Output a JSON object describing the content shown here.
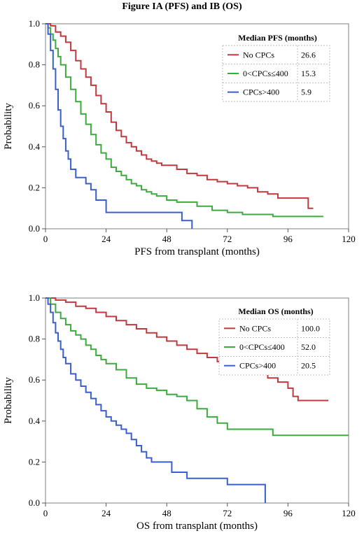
{
  "figure_title": "Figure IA (PFS) and IB (OS)",
  "chart_data": [
    {
      "type": "line",
      "step": true,
      "xlabel": "PFS from transplant (months)",
      "ylabel": "Probability",
      "xlim": [
        0,
        120
      ],
      "ylim": [
        0,
        1.0
      ],
      "xticks": [
        0,
        24,
        48,
        72,
        96,
        120
      ],
      "yticks": [
        0.0,
        0.2,
        0.4,
        0.6,
        0.8,
        1.0
      ],
      "legend": {
        "title": "Median PFS (months)",
        "placement": "top-right",
        "entries": [
          {
            "label": "No CPCs",
            "value": "26.6"
          },
          {
            "label": "0<CPCs≤400",
            "value": "15.3"
          },
          {
            "label": "CPCs>400",
            "value": "5.9"
          }
        ]
      },
      "series": [
        {
          "name": "No CPCs",
          "color": "#C0393F",
          "x": [
            0,
            2,
            4,
            6,
            8,
            10,
            12,
            14,
            16,
            18,
            20,
            22,
            24,
            26,
            28,
            30,
            32,
            34,
            36,
            38,
            40,
            42,
            44,
            46,
            48,
            52,
            56,
            60,
            64,
            68,
            72,
            76,
            80,
            84,
            88,
            92,
            96,
            100,
            104,
            106
          ],
          "y": [
            1.0,
            0.99,
            0.96,
            0.94,
            0.91,
            0.87,
            0.82,
            0.78,
            0.74,
            0.7,
            0.65,
            0.61,
            0.57,
            0.52,
            0.48,
            0.45,
            0.42,
            0.4,
            0.38,
            0.36,
            0.34,
            0.33,
            0.32,
            0.31,
            0.31,
            0.29,
            0.27,
            0.26,
            0.24,
            0.23,
            0.22,
            0.21,
            0.2,
            0.18,
            0.17,
            0.15,
            0.15,
            0.15,
            0.1,
            0.1
          ]
        },
        {
          "name": "0<CPCs≤400",
          "color": "#3DAA3F",
          "x": [
            0,
            1,
            2,
            3,
            4,
            5,
            6,
            8,
            10,
            12,
            14,
            16,
            18,
            20,
            22,
            24,
            26,
            28,
            30,
            32,
            34,
            36,
            38,
            40,
            42,
            44,
            48,
            52,
            56,
            60,
            66,
            72,
            78,
            84,
            90,
            96,
            102,
            110
          ],
          "y": [
            1.0,
            0.98,
            0.95,
            0.92,
            0.88,
            0.84,
            0.8,
            0.74,
            0.68,
            0.62,
            0.56,
            0.51,
            0.46,
            0.41,
            0.37,
            0.34,
            0.3,
            0.28,
            0.26,
            0.24,
            0.22,
            0.21,
            0.19,
            0.18,
            0.17,
            0.16,
            0.14,
            0.13,
            0.13,
            0.11,
            0.09,
            0.08,
            0.07,
            0.07,
            0.06,
            0.06,
            0.06,
            0.06
          ]
        },
        {
          "name": "CPCs>400",
          "color": "#3A5FCD",
          "x": [
            0,
            1,
            2,
            3,
            4,
            5,
            6,
            7,
            8,
            9,
            10,
            12,
            14,
            16,
            18,
            20,
            22,
            24,
            30,
            36,
            42,
            48,
            54,
            58
          ],
          "y": [
            1.0,
            0.95,
            0.87,
            0.78,
            0.68,
            0.58,
            0.5,
            0.44,
            0.38,
            0.34,
            0.29,
            0.25,
            0.25,
            0.22,
            0.19,
            0.14,
            0.14,
            0.08,
            0.08,
            0.08,
            0.08,
            0.08,
            0.04,
            0.0
          ]
        }
      ]
    },
    {
      "type": "line",
      "step": true,
      "xlabel": "OS from transplant (months)",
      "ylabel": "Probability",
      "xlim": [
        0,
        120
      ],
      "ylim": [
        0,
        1.0
      ],
      "xticks": [
        0,
        24,
        48,
        72,
        96,
        120
      ],
      "yticks": [
        0.0,
        0.2,
        0.4,
        0.6,
        0.8,
        1.0
      ],
      "legend": {
        "title": "Median OS (months)",
        "placement": "top-right",
        "entries": [
          {
            "label": "No CPCs",
            "value": "100.0"
          },
          {
            "label": "0<CPCs≤400",
            "value": "52.0"
          },
          {
            "label": "CPCs>400",
            "value": "20.5"
          }
        ]
      },
      "series": [
        {
          "name": "No CPCs",
          "color": "#C0393F",
          "x": [
            0,
            4,
            8,
            12,
            16,
            20,
            24,
            28,
            32,
            36,
            40,
            44,
            48,
            52,
            56,
            60,
            64,
            68,
            72,
            76,
            80,
            84,
            88,
            92,
            96,
            98,
            100,
            104,
            108,
            112
          ],
          "y": [
            1.0,
            0.99,
            0.98,
            0.96,
            0.95,
            0.93,
            0.91,
            0.89,
            0.87,
            0.85,
            0.83,
            0.81,
            0.79,
            0.77,
            0.75,
            0.73,
            0.71,
            0.69,
            0.67,
            0.65,
            0.64,
            0.63,
            0.61,
            0.59,
            0.56,
            0.52,
            0.5,
            0.5,
            0.5,
            0.5
          ]
        },
        {
          "name": "0<CPCs≤400",
          "color": "#3DAA3F",
          "x": [
            0,
            2,
            4,
            6,
            8,
            10,
            12,
            14,
            16,
            18,
            20,
            22,
            24,
            28,
            32,
            36,
            40,
            44,
            48,
            52,
            56,
            60,
            64,
            68,
            72,
            80,
            88,
            90,
            100,
            110,
            120
          ],
          "y": [
            1.0,
            0.97,
            0.93,
            0.9,
            0.87,
            0.84,
            0.82,
            0.8,
            0.77,
            0.75,
            0.72,
            0.7,
            0.68,
            0.65,
            0.61,
            0.58,
            0.56,
            0.55,
            0.53,
            0.52,
            0.5,
            0.46,
            0.42,
            0.39,
            0.36,
            0.36,
            0.36,
            0.33,
            0.33,
            0.33,
            0.33
          ]
        },
        {
          "name": "CPCs>400",
          "color": "#3A5FCD",
          "x": [
            0,
            1,
            2,
            3,
            4,
            5,
            6,
            7,
            8,
            10,
            12,
            14,
            16,
            18,
            20,
            22,
            24,
            26,
            28,
            30,
            32,
            34,
            36,
            38,
            40,
            42,
            44,
            46,
            50,
            56,
            60,
            66,
            72,
            80,
            87
          ],
          "y": [
            1.0,
            0.97,
            0.93,
            0.88,
            0.83,
            0.79,
            0.75,
            0.71,
            0.68,
            0.63,
            0.6,
            0.57,
            0.54,
            0.51,
            0.48,
            0.45,
            0.42,
            0.4,
            0.38,
            0.36,
            0.34,
            0.31,
            0.28,
            0.25,
            0.22,
            0.2,
            0.2,
            0.2,
            0.15,
            0.12,
            0.12,
            0.12,
            0.09,
            0.09,
            0.0
          ]
        }
      ]
    }
  ]
}
